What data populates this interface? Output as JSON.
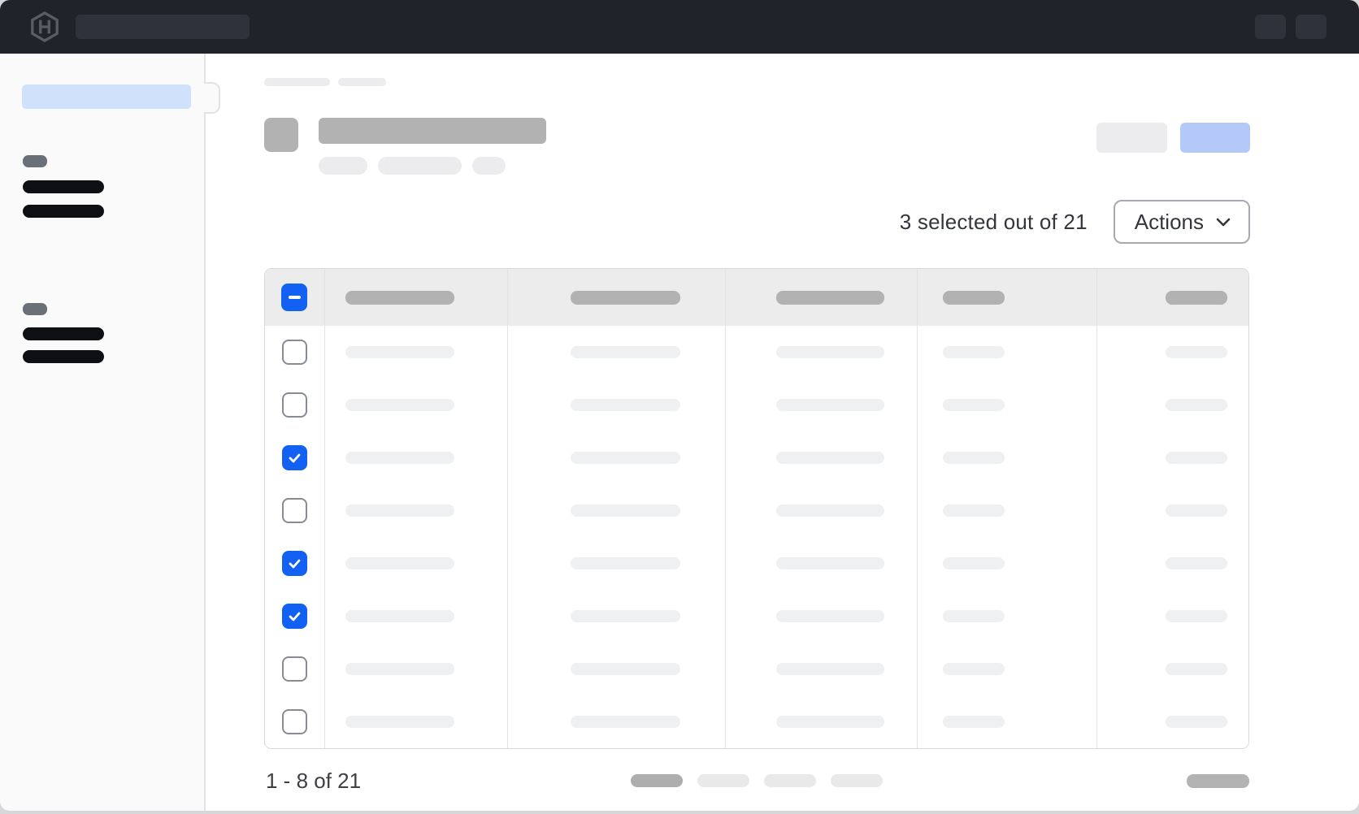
{
  "topnav": {
    "logo_icon": "hashicorp-logo",
    "search_placeholder_skeleton": true,
    "right_button_skeletons": 2
  },
  "sidebar": {
    "active_item_skeleton": true,
    "sections": [
      {
        "label_skeleton": true,
        "item_skeletons": 2
      },
      {
        "label_skeleton": true,
        "item_skeletons": 2
      }
    ]
  },
  "page_header": {
    "breadcrumb_skeletons": 2,
    "title_skeleton": true,
    "badge_skeletons": 3,
    "action_button_skeletons": 2
  },
  "selection": {
    "summary": "3 selected out of 21",
    "selected_count": 3,
    "total_count": 21
  },
  "actions_button": {
    "label": "Actions",
    "icon": "chevron-down-icon"
  },
  "table": {
    "header_checkbox_state": "indeterminate",
    "column_skeletons": 5,
    "rows": [
      {
        "checked": false
      },
      {
        "checked": false
      },
      {
        "checked": true
      },
      {
        "checked": false
      },
      {
        "checked": true
      },
      {
        "checked": true
      },
      {
        "checked": false
      },
      {
        "checked": false
      }
    ]
  },
  "pagination": {
    "range_label": "1 - 8 of 21",
    "page_placeholders": 4,
    "current_page_index": 0,
    "next_control_skeleton": true
  },
  "colors": {
    "accent_blue": "#1261f2",
    "accent_blue_light": "#b5c9f8",
    "nav_selected_blue": "#cfe1fb",
    "navbar_bg": "#20232a",
    "skeleton_dark": "#b2b2b2",
    "skeleton_light": "#ececee",
    "table_header_bg": "#ececed"
  }
}
